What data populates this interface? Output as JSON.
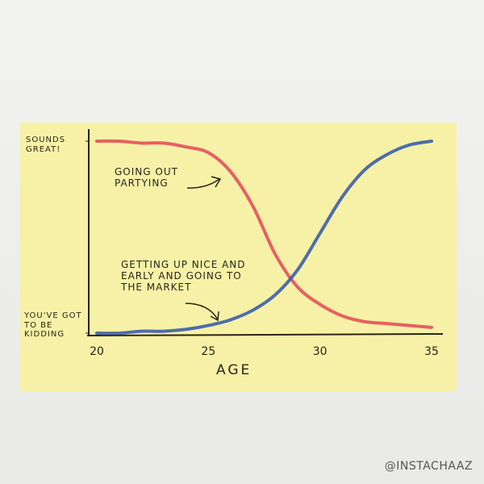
{
  "chart_data": {
    "type": "line",
    "x_label": "AGE",
    "annotations": [
      "GOING OUT PARTYING",
      "GETTING UP NICE AND EARLY AND GOING TO THE MARKET"
    ],
    "x": [
      20,
      21,
      22,
      23,
      24,
      25,
      26,
      27,
      28,
      29,
      30,
      31,
      32,
      33,
      34,
      35
    ],
    "xlim": [
      20,
      35
    ],
    "xticks": [
      20,
      25,
      30,
      35
    ],
    "ylim": [
      0,
      1
    ],
    "yticks": [
      {
        "value": 0,
        "label": "YOU'VE GOT TO BE KIDDING"
      },
      {
        "value": 1,
        "label": "SOUNDS GREAT!"
      }
    ],
    "grid": false,
    "series": [
      {
        "name": "GOING OUT PARTYING",
        "color": "#e5505c",
        "values": [
          1.0,
          1.0,
          0.99,
          0.99,
          0.97,
          0.94,
          0.84,
          0.66,
          0.41,
          0.24,
          0.15,
          0.09,
          0.06,
          0.05,
          0.04,
          0.03
        ]
      },
      {
        "name": "GETTING UP NICE AND EARLY AND GOING TO THE MARKET",
        "color": "#3b5eab",
        "values": [
          0.0,
          0.0,
          0.01,
          0.01,
          0.02,
          0.04,
          0.07,
          0.12,
          0.2,
          0.33,
          0.52,
          0.71,
          0.85,
          0.93,
          0.98,
          1.0
        ]
      }
    ]
  },
  "credit": "@INSTACHAAZ"
}
